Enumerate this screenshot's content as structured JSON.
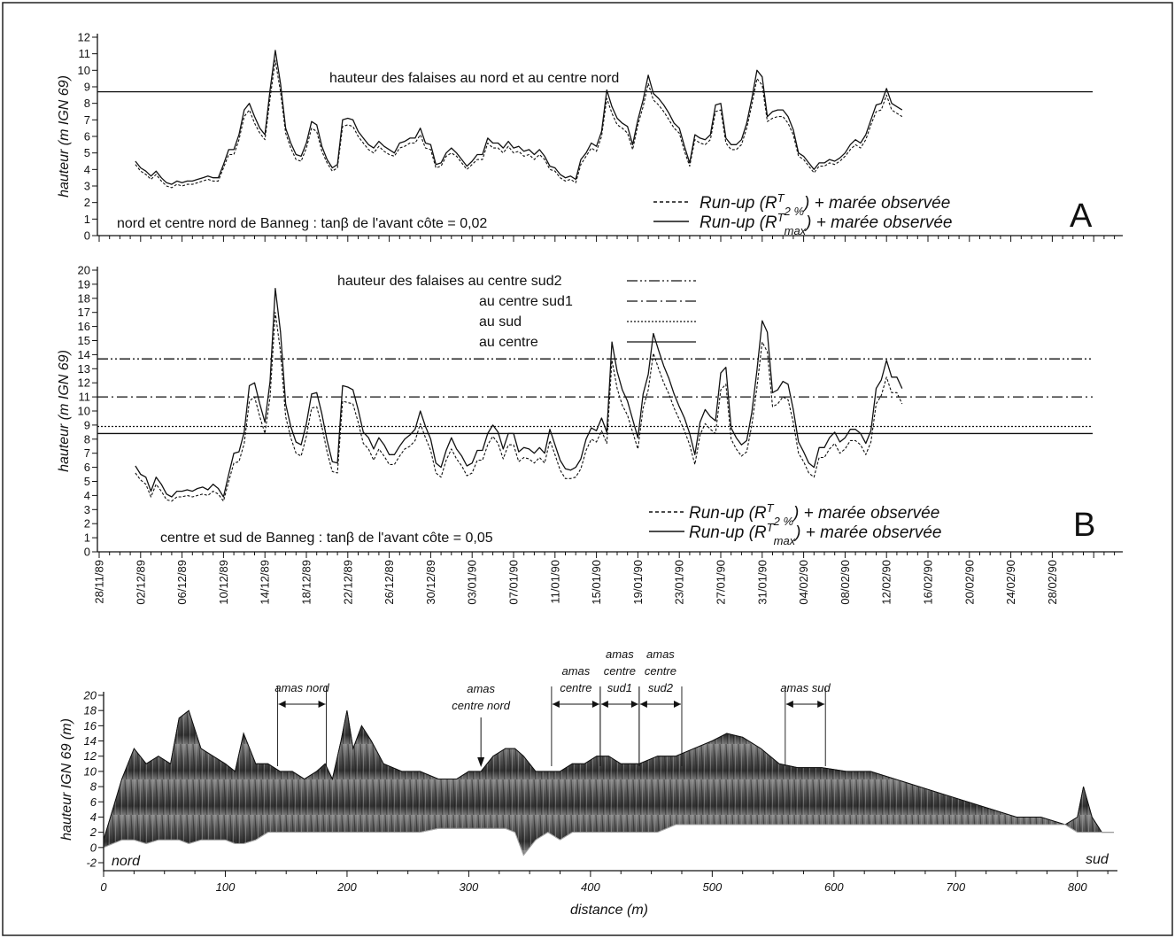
{
  "chart_data": [
    {
      "id": "A",
      "type": "line",
      "panel_label": "A",
      "ylabel": "hauteur (m IGN 69)",
      "ylim": [
        0,
        12
      ],
      "yticks": [
        "0",
        "1",
        "2",
        "3",
        "4",
        "5",
        "6",
        "7",
        "8",
        "9",
        "10",
        "11",
        "12"
      ],
      "annotation": "nord et centre nord de Banneg : tanβ de l'avant côte = 0,02",
      "hlines": [
        {
          "label": "hauteur des falaises au nord et au centre nord",
          "y": 8.7,
          "style": "solid"
        }
      ],
      "legend": [
        {
          "pre": "Run-up (R",
          "sup": "T",
          "sub": "2 %",
          "post": ") + marée observée",
          "style": "dashed"
        },
        {
          "pre": "Run-up (R",
          "sup": "T",
          "sub": "max",
          "post": ") + marée observée",
          "style": "solid"
        }
      ],
      "x_start_day": 3.5,
      "x_step_day": 0.5,
      "series": [
        {
          "style": "solid",
          "values": [
            4.5,
            4.1,
            3.9,
            3.6,
            3.9,
            3.5,
            3.2,
            3.1,
            3.3,
            3.2,
            3.3,
            3.3,
            3.4,
            3.5,
            3.6,
            3.5,
            3.5,
            4.3,
            5.2,
            5.2,
            6.1,
            7.6,
            8.0,
            7.2,
            6.5,
            6.1,
            8.8,
            11.2,
            9.2,
            6.5,
            5.6,
            4.9,
            4.8,
            5.6,
            6.9,
            6.7,
            5.4,
            4.6,
            4.1,
            4.3,
            7.0,
            7.1,
            7.0,
            6.3,
            5.9,
            5.5,
            5.3,
            5.7,
            5.4,
            5.2,
            5.0,
            5.6,
            5.7,
            5.9,
            5.9,
            6.5,
            5.6,
            5.5,
            4.3,
            4.4,
            5.0,
            5.3,
            5.0,
            4.6,
            4.2,
            4.5,
            4.9,
            4.9,
            5.9,
            5.6,
            5.6,
            5.3,
            5.7,
            5.3,
            5.4,
            5.1,
            5.2,
            4.9,
            5.2,
            4.8,
            4.2,
            4.1,
            3.7,
            3.5,
            3.6,
            3.4,
            4.6,
            5.0,
            5.6,
            5.4,
            6.3,
            8.8,
            7.8,
            7.1,
            6.8,
            6.6,
            5.5,
            7.0,
            8.2,
            9.7,
            8.6,
            8.3,
            7.9,
            7.4,
            6.8,
            6.5,
            5.4,
            4.4,
            6.1,
            5.9,
            5.8,
            6.1,
            7.9,
            8.0,
            5.9,
            5.5,
            5.5,
            5.8,
            6.8,
            8.3,
            10.0,
            9.6,
            7.2,
            7.5,
            7.6,
            7.6,
            7.2,
            6.4,
            5.0,
            4.8,
            4.4,
            4.0,
            4.4,
            4.4,
            4.6,
            4.5,
            4.7,
            5.0,
            5.5,
            5.8,
            5.6,
            6.1,
            7.0,
            7.9,
            8.0,
            8.9,
            8.0,
            7.8,
            7.6
          ]
        },
        {
          "style": "dashed",
          "values": [
            4.3,
            3.9,
            3.7,
            3.4,
            3.7,
            3.3,
            3.0,
            2.9,
            3.1,
            3.0,
            3.1,
            3.1,
            3.2,
            3.3,
            3.4,
            3.3,
            3.3,
            4.1,
            4.9,
            4.9,
            5.8,
            7.2,
            7.6,
            6.8,
            6.2,
            5.8,
            8.3,
            10.6,
            8.7,
            6.2,
            5.3,
            4.6,
            4.5,
            5.3,
            6.5,
            6.3,
            5.1,
            4.4,
            3.9,
            4.1,
            6.6,
            6.7,
            6.6,
            6.0,
            5.6,
            5.2,
            5.0,
            5.4,
            5.1,
            4.9,
            4.8,
            5.3,
            5.4,
            5.6,
            5.6,
            6.1,
            5.3,
            5.2,
            4.1,
            4.2,
            4.8,
            5.0,
            4.8,
            4.4,
            4.0,
            4.3,
            4.6,
            4.6,
            5.6,
            5.3,
            5.3,
            5.0,
            5.4,
            5.0,
            5.1,
            4.8,
            4.9,
            4.6,
            4.9,
            4.6,
            4.0,
            3.9,
            3.5,
            3.3,
            3.4,
            3.2,
            4.3,
            4.8,
            5.3,
            5.1,
            6.0,
            8.3,
            7.4,
            6.7,
            6.5,
            6.2,
            5.2,
            6.7,
            7.8,
            9.2,
            8.2,
            7.9,
            7.5,
            7.0,
            6.5,
            6.2,
            5.1,
            4.2,
            5.8,
            5.6,
            5.5,
            5.8,
            7.5,
            7.6,
            5.6,
            5.2,
            5.2,
            5.5,
            6.5,
            7.9,
            9.5,
            9.1,
            6.9,
            7.1,
            7.2,
            7.2,
            6.8,
            6.1,
            4.8,
            4.6,
            4.2,
            3.8,
            4.2,
            4.2,
            4.4,
            4.3,
            4.5,
            4.8,
            5.2,
            5.5,
            5.3,
            5.8,
            6.7,
            7.5,
            7.6,
            8.5,
            7.6,
            7.4,
            7.2
          ]
        }
      ]
    },
    {
      "id": "B",
      "type": "line",
      "panel_label": "B",
      "ylabel": "hauteur (m IGN 69)",
      "ylim": [
        0,
        20
      ],
      "yticks": [
        "0",
        "1",
        "2",
        "3",
        "4",
        "5",
        "6",
        "7",
        "8",
        "9",
        "10",
        "11",
        "12",
        "13",
        "14",
        "15",
        "16",
        "17",
        "18",
        "19",
        "20"
      ],
      "annotation": "centre et sud de Banneg : tanβ de l'avant côte = 0,05",
      "hlines": [
        {
          "label": "hauteur des falaises au centre sud2",
          "y": 13.7,
          "style": "dashdotdot"
        },
        {
          "label": "au centre sud1",
          "y": 11.0,
          "style": "dashdot"
        },
        {
          "label": "au sud",
          "y": 8.9,
          "style": "dotted"
        },
        {
          "label": "au centre",
          "y": 8.4,
          "style": "solid"
        }
      ],
      "legend": [
        {
          "pre": "Run-up (R",
          "sup": "T",
          "sub": "2 %",
          "post": ") + marée observée",
          "style": "dashed"
        },
        {
          "pre": "Run-up (R",
          "sup": "T",
          "sub": "max",
          "post": ") + marée observée",
          "style": "solid"
        }
      ],
      "x_start_day": 3.5,
      "x_step_day": 0.5,
      "series": [
        {
          "style": "solid",
          "values": [
            6.1,
            5.5,
            5.3,
            4.3,
            5.3,
            4.8,
            4.1,
            3.9,
            4.3,
            4.3,
            4.4,
            4.3,
            4.5,
            4.6,
            4.4,
            4.8,
            4.5,
            3.9,
            5.5,
            7.0,
            7.1,
            8.5,
            11.8,
            12.0,
            10.5,
            9.2,
            12.1,
            18.7,
            15.6,
            10.5,
            8.9,
            7.8,
            7.6,
            9.1,
            11.2,
            11.3,
            9.8,
            7.9,
            6.4,
            6.3,
            11.8,
            11.7,
            11.5,
            10.1,
            8.5,
            8.1,
            7.3,
            8.1,
            7.6,
            6.9,
            6.9,
            7.5,
            8.0,
            8.3,
            8.7,
            10.0,
            8.9,
            8.0,
            6.3,
            6.0,
            7.2,
            8.1,
            7.3,
            6.8,
            6.1,
            6.3,
            7.2,
            7.2,
            8.4,
            9.0,
            8.5,
            7.3,
            8.4,
            8.4,
            7.1,
            7.4,
            7.3,
            7.0,
            7.4,
            7.0,
            8.7,
            7.6,
            6.5,
            5.9,
            5.8,
            6.0,
            6.6,
            8.0,
            8.8,
            8.6,
            9.5,
            8.5,
            14.9,
            12.8,
            11.5,
            10.7,
            9.4,
            8.1,
            11.2,
            12.6,
            15.5,
            14.3,
            13.2,
            12.3,
            11.2,
            10.3,
            9.5,
            8.4,
            6.9,
            9.2,
            10.1,
            9.6,
            9.3,
            12.7,
            13.1,
            8.8,
            8.1,
            7.6,
            7.9,
            9.9,
            12.9,
            16.4,
            15.6,
            11.3,
            11.5,
            12.1,
            11.9,
            10.1,
            7.8,
            7.1,
            6.3,
            6.0,
            7.4,
            7.4,
            8.1,
            8.5,
            7.8,
            8.1,
            8.7,
            8.7,
            8.4,
            7.7,
            8.6,
            11.6,
            12.2,
            13.6,
            12.4,
            12.4,
            11.6
          ]
        },
        {
          "style": "dashed",
          "values": [
            5.6,
            5.1,
            4.8,
            3.9,
            4.8,
            4.3,
            3.7,
            3.6,
            3.9,
            3.9,
            4.0,
            3.9,
            4.0,
            4.1,
            4.0,
            4.3,
            4.1,
            3.6,
            5.0,
            6.3,
            6.4,
            7.7,
            10.7,
            11.0,
            9.6,
            8.4,
            11.0,
            17.0,
            14.2,
            9.6,
            8.1,
            7.0,
            6.8,
            8.2,
            10.2,
            10.3,
            8.9,
            7.1,
            5.7,
            5.6,
            10.7,
            10.6,
            10.5,
            9.2,
            7.7,
            7.3,
            6.5,
            7.3,
            6.8,
            6.2,
            6.2,
            6.8,
            7.3,
            7.5,
            7.9,
            9.1,
            8.1,
            7.2,
            5.6,
            5.3,
            6.5,
            7.3,
            6.6,
            6.1,
            5.4,
            5.6,
            6.5,
            6.5,
            7.6,
            8.2,
            7.7,
            6.6,
            7.6,
            7.6,
            6.4,
            6.7,
            6.6,
            6.3,
            6.7,
            6.3,
            7.9,
            6.9,
            5.8,
            5.2,
            5.2,
            5.3,
            5.9,
            7.2,
            8.0,
            7.8,
            8.6,
            7.7,
            13.6,
            11.6,
            10.4,
            9.7,
            8.5,
            7.3,
            10.2,
            11.5,
            14.1,
            13.0,
            12.0,
            11.2,
            10.2,
            9.4,
            8.6,
            7.6,
            6.2,
            8.3,
            9.1,
            8.7,
            8.4,
            11.5,
            11.9,
            8.0,
            7.3,
            6.8,
            7.1,
            9.0,
            11.7,
            14.9,
            14.2,
            10.3,
            10.5,
            11.0,
            10.8,
            9.2,
            7.0,
            6.4,
            5.6,
            5.3,
            6.7,
            6.7,
            7.3,
            7.7,
            7.0,
            7.3,
            7.9,
            7.9,
            7.6,
            6.9,
            7.8,
            10.5,
            11.1,
            12.4,
            11.3,
            11.3,
            10.5
          ]
        }
      ],
      "x_tick_labels": [
        "28/11/89",
        "02/12/89",
        "06/12/89",
        "10/12/89",
        "14/12/89",
        "18/12/89",
        "22/12/89",
        "26/12/89",
        "30/12/89",
        "03/01/90",
        "07/01/90",
        "11/01/90",
        "15/01/90",
        "19/01/90",
        "23/01/90",
        "27/01/90",
        "31/01/90",
        "04/02/90",
        "08/02/90",
        "12/02/90",
        "16/02/90",
        "20/02/90",
        "24/02/90",
        "28/02/90"
      ]
    },
    {
      "id": "C",
      "type": "area",
      "ylabel": "hauteur IGN 69 (m)",
      "xlabel": "distance (m)",
      "xlim": [
        0,
        830
      ],
      "ylim": [
        -2,
        20
      ],
      "yticks": [
        "-2",
        "0",
        "2",
        "4",
        "6",
        "8",
        "10",
        "12",
        "14",
        "16",
        "18",
        "20"
      ],
      "xticks": [
        "0",
        "100",
        "200",
        "300",
        "400",
        "500",
        "600",
        "700",
        "800"
      ],
      "left_label": "nord",
      "right_label": "sud",
      "profile_x": [
        0,
        15,
        25,
        35,
        45,
        55,
        62,
        70,
        80,
        90,
        100,
        108,
        115,
        125,
        135,
        145,
        155,
        165,
        175,
        182,
        188,
        195,
        200,
        205,
        212,
        220,
        230,
        245,
        260,
        275,
        290,
        300,
        310,
        320,
        330,
        338,
        345,
        355,
        365,
        375,
        385,
        395,
        405,
        415,
        425,
        440,
        455,
        470,
        485,
        500,
        512,
        525,
        540,
        555,
        570,
        590,
        610,
        630,
        650,
        670,
        690,
        710,
        730,
        750,
        770,
        790,
        800,
        805,
        812,
        820,
        830
      ],
      "profile_top": [
        1,
        9,
        13,
        11,
        12,
        11,
        17,
        18,
        13,
        12,
        11,
        10,
        15,
        11,
        11,
        10,
        10,
        9,
        10,
        11,
        9,
        14,
        18,
        13,
        16,
        14,
        11,
        10,
        10,
        9,
        9,
        10,
        10,
        12,
        13,
        13,
        12,
        10,
        10,
        10,
        11,
        11,
        12,
        12,
        11,
        11,
        12,
        12,
        13,
        14,
        15,
        14.5,
        13,
        11,
        10.5,
        10.5,
        10,
        10,
        9,
        8,
        7,
        6,
        5,
        4,
        4,
        3,
        4,
        8,
        4,
        2,
        2
      ],
      "profile_base": [
        0,
        1,
        1,
        0.5,
        1,
        1,
        1,
        0.5,
        1,
        1,
        1,
        0.5,
        0.5,
        1,
        2,
        2,
        2,
        2,
        2,
        2,
        2,
        2,
        2,
        2,
        2,
        2,
        2,
        2,
        2,
        2.5,
        2.5,
        2.5,
        2.5,
        2.5,
        2.5,
        2,
        -1,
        1,
        2,
        1,
        2,
        2,
        2,
        2,
        2,
        2,
        2,
        3,
        3,
        3,
        3,
        3,
        3,
        3,
        3,
        3,
        3,
        3,
        3,
        3,
        3,
        3,
        3,
        3,
        3,
        3,
        2,
        2,
        2,
        2,
        2
      ],
      "markers": [
        {
          "kind": "range",
          "x1": 143,
          "x2": 183,
          "lines": [
            "amas nord"
          ]
        },
        {
          "kind": "arrow",
          "x": 310,
          "lines": [
            "amas",
            "centre nord"
          ]
        },
        {
          "kind": "range",
          "x1": 368,
          "x2": 408,
          "lines": [
            "amas",
            "centre"
          ]
        },
        {
          "kind": "range",
          "x1": 408,
          "x2": 440,
          "lines": [
            "amas",
            "centre",
            "sud1"
          ]
        },
        {
          "kind": "range",
          "x1": 440,
          "x2": 475,
          "lines": [
            "amas",
            "centre",
            "sud2"
          ]
        },
        {
          "kind": "range",
          "x1": 560,
          "x2": 593,
          "lines": [
            "amas sud"
          ]
        }
      ]
    }
  ]
}
